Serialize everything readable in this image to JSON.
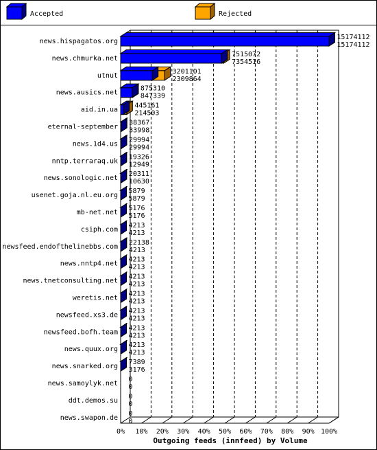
{
  "chart_data": {
    "type": "bar3d",
    "orientation": "horizontal",
    "xlabel": "Outgoing feeds (innfeed) by Volume",
    "categories": [
      "news.hispagatos.org",
      "news.chmurka.net",
      "utnut",
      "news.ausics.net",
      "aid.in.ua",
      "eternal-september",
      "news.1d4.us",
      "nntp.terraraq.uk",
      "news.sonologic.net",
      "usenet.goja.nl.eu.org",
      "mb-net.net",
      "csiph.com",
      "newsfeed.endofthelinebbs.com",
      "news.nntp4.net",
      "news.tnetconsulting.net",
      "weretis.net",
      "newsfeed.xs3.de",
      "newsfeed.bofh.team",
      "news.quux.org",
      "news.snarked.org",
      "news.samoylyk.net",
      "ddt.demos.su",
      "news.swapon.de"
    ],
    "series": [
      {
        "name": "Accepted",
        "color": "#0000ff",
        "values": [
          15174112,
          7354516,
          2309864,
          847339,
          214503,
          33998,
          29994,
          12949,
          10630,
          5879,
          5176,
          4213,
          4213,
          4213,
          4213,
          4213,
          4213,
          4213,
          4213,
          3176,
          0,
          0,
          0
        ]
      },
      {
        "name": "Rejected",
        "color": "#ffa500",
        "values": [
          15174112,
          7515072,
          3201101,
          875310,
          445161,
          38367,
          29994,
          19326,
          20311,
          5879,
          5176,
          4213,
          22138,
          4213,
          4213,
          4213,
          4213,
          4213,
          4213,
          7389,
          0,
          0,
          0
        ]
      }
    ],
    "xlim": [
      0,
      15174112
    ],
    "xticks": [
      {
        "value": 0,
        "label": "0%"
      },
      {
        "value": 1517411.2,
        "label": "10%"
      },
      {
        "value": 3034822.4,
        "label": "20%"
      },
      {
        "value": 4552233.6,
        "label": "30%"
      },
      {
        "value": 6069644.8,
        "label": "40%"
      },
      {
        "value": 7587056,
        "label": "50%"
      },
      {
        "value": 9104467.2,
        "label": "60%"
      },
      {
        "value": 10621878.4,
        "label": "70%"
      },
      {
        "value": 12139289.6,
        "label": "80%"
      },
      {
        "value": 13656700.8,
        "label": "90%"
      },
      {
        "value": 15174112,
        "label": "100%"
      }
    ],
    "grid": true
  }
}
